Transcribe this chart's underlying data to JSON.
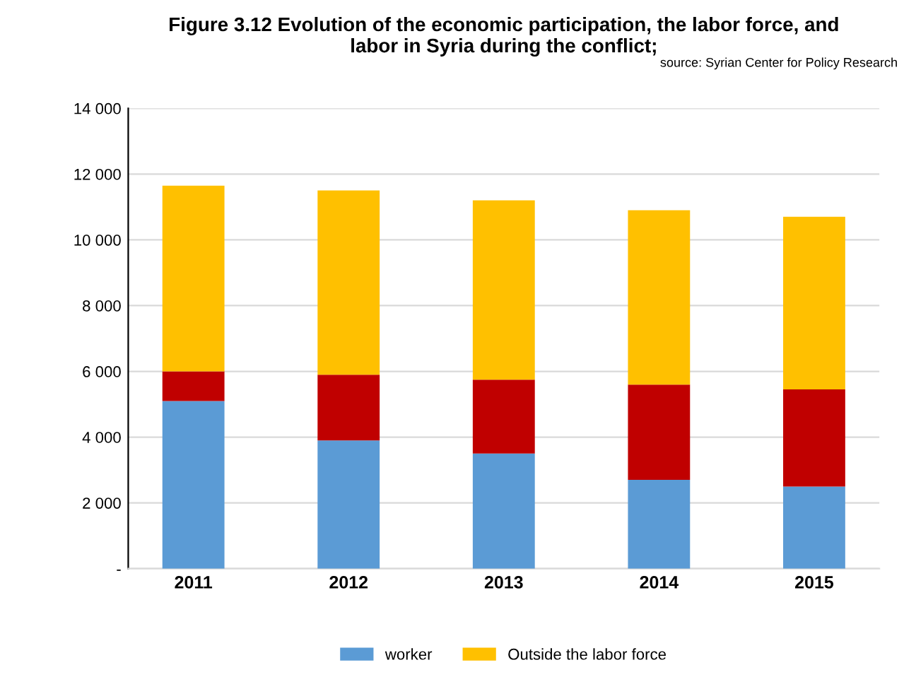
{
  "chart_data": {
    "type": "bar",
    "stacked": true,
    "title": "Figure 3.12 Evolution of the economic participation, the labor force, and\nlabor in Syria during the conflict;",
    "subtitle": "source: Syrian Center for Policy Research",
    "categories": [
      "2011",
      "2012",
      "2013",
      "2014",
      "2015"
    ],
    "series": [
      {
        "name": "worker",
        "color": "#5b9bd5",
        "values": [
          5100,
          3900,
          3500,
          2700,
          2500
        ]
      },
      {
        "color": "#c00000",
        "values": [
          900,
          2000,
          2250,
          2900,
          2950
        ]
      },
      {
        "name": "Outside the labor force",
        "color": "#ffc000",
        "values": [
          5650,
          5600,
          5450,
          5300,
          5250
        ]
      }
    ],
    "ylim": [
      0,
      14000
    ],
    "yticks": [
      {
        "value": 0,
        "label": "-"
      },
      {
        "value": 2000,
        "label": "2 000"
      },
      {
        "value": 4000,
        "label": "4 000"
      },
      {
        "value": 6000,
        "label": "6 000"
      },
      {
        "value": 8000,
        "label": "8 000"
      },
      {
        "value": 10000,
        "label": "10 000"
      },
      {
        "value": 12000,
        "label": "12 000"
      },
      {
        "value": 14000,
        "label": "14 000"
      }
    ],
    "grid": "y",
    "legend": "bottom"
  }
}
